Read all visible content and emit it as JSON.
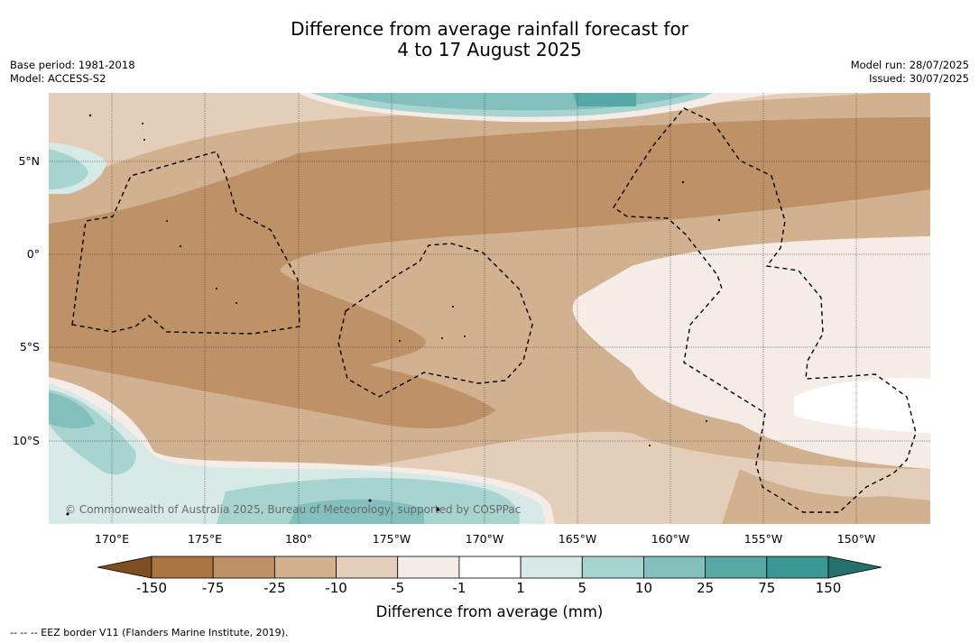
{
  "title_line1": "Difference from average rainfall forecast for",
  "title_line2": "4 to 17 August 2025",
  "base_period": "Base period: 1981-2018",
  "model": "Model: ACCESS-S2",
  "model_run": "Model run: 28/07/2025",
  "issued": "Issued: 30/07/2025",
  "copyright": "© Commonwealth of Australia 2025, Bureau of Meteorology, supported by COSPPac",
  "lat_labels": [
    "5°N",
    "0°",
    "5°S",
    "10°S"
  ],
  "lon_labels": [
    "170°E",
    "175°E",
    "180°",
    "175°W",
    "170°W",
    "165°W",
    "160°W",
    "155°W",
    "150°W"
  ],
  "colorbar": {
    "title": "Difference from average (mm)",
    "ticks": [
      "-150",
      "-75",
      "-25",
      "-10",
      "-5",
      "-1",
      "1",
      "5",
      "10",
      "25",
      "75",
      "150"
    ],
    "colors": [
      "#7f4f24",
      "#ab7440",
      "#bf9167",
      "#d1b190",
      "#e4cdb9",
      "#f5ece7",
      "#ffffff",
      "#d6e9e6",
      "#a8d4d0",
      "#82bfbd",
      "#56a8a6",
      "#3a9894",
      "#23706c"
    ]
  },
  "legend_footer": "--  --  -- EEZ border V11 (Flanders Marine Institute, 2019)."
}
